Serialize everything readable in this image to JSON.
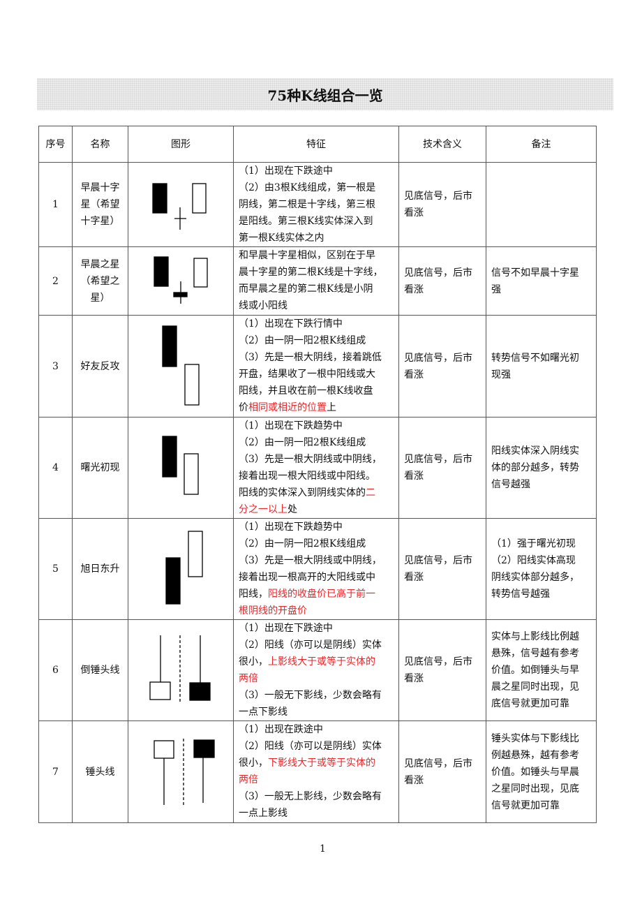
{
  "title": "75种K线组合一览",
  "headers": [
    "序号",
    "名称",
    "图形",
    "特征",
    "技术含义",
    "备注"
  ],
  "colors": {
    "highlight": "#e8262a"
  },
  "rows": [
    {
      "no": "1",
      "name": [
        "早晨十字",
        "星（希望",
        "十字星）"
      ],
      "feature": [
        [
          [
            "（1）出现在下跌途中"
          ]
        ],
        [
          [
            "（2）由3根K线组成，第一根是"
          ]
        ],
        [
          [
            "阴线，第二根是十字线，第三根"
          ]
        ],
        [
          [
            "是阳线。第三根K线实体深入到"
          ]
        ],
        [
          [
            "第一根K线实体之内"
          ]
        ]
      ],
      "meaning": [
        "见底信号，后市",
        "看涨"
      ],
      "note": []
    },
    {
      "no": "2",
      "name": [
        "早晨之星",
        "（希望之",
        "星）"
      ],
      "feature": [
        [
          [
            "和早晨十字星相似，区别在于早"
          ]
        ],
        [
          [
            "晨十字星的第二根K线是十字线，"
          ]
        ],
        [
          [
            "而早晨之星的第二根K线是小阴"
          ]
        ],
        [
          [
            "线或小阳线"
          ]
        ]
      ],
      "meaning": [
        "见底信号，后市",
        "看涨"
      ],
      "note": [
        "信号不如早晨十字星",
        "强"
      ]
    },
    {
      "no": "3",
      "name": [
        "好友反攻"
      ],
      "feature": [
        [
          [
            "（1）出现在下跌行情中"
          ]
        ],
        [
          [
            "（2）由一阴一阳2根K线组成"
          ]
        ],
        [
          [
            "（3）先是一根大阴线，接着跳低"
          ]
        ],
        [
          [
            "开盘，结果收了一根中阳线或大"
          ]
        ],
        [
          [
            "阳线，并且收在前一根K线收盘"
          ]
        ],
        [
          [
            "价"
          ],
          [
            "相同或相近的位置",
            "red"
          ],
          [
            "上"
          ]
        ]
      ],
      "meaning": [
        "见底信号，后市",
        "看涨"
      ],
      "note": [
        "转势信号不如曙光初",
        "现强"
      ]
    },
    {
      "no": "4",
      "name": [
        "曙光初现"
      ],
      "feature": [
        [
          [
            "（1）出现在下跌趋势中"
          ]
        ],
        [
          [
            "（2）由一阴一阳2根K线组成"
          ]
        ],
        [
          [
            "（3）先是一根大阴线或中阴线，"
          ]
        ],
        [
          [
            "接着出现一根大阳线或中阳线。"
          ]
        ],
        [
          [
            "阳线的实体深入到阴线实体的"
          ],
          [
            "二",
            "red"
          ]
        ],
        [
          [
            "分之一以上",
            "red"
          ],
          [
            "处"
          ]
        ]
      ],
      "meaning": [
        "见底信号，后市",
        "看涨"
      ],
      "note": [
        "阳线实体深入阴线实",
        "体的部分越多，转势",
        "信号越强"
      ]
    },
    {
      "no": "5",
      "name": [
        "旭日东升"
      ],
      "feature": [
        [
          [
            "（1）出现在下跌趋势中"
          ]
        ],
        [
          [
            "（2）由一阴一阳2根K线组成"
          ]
        ],
        [
          [
            "（3）先是一根大阴线或中阴线，"
          ]
        ],
        [
          [
            "接着出现一根高开的大阳线或中"
          ]
        ],
        [
          [
            "阳线，"
          ],
          [
            "阳线的收盘价已高于前一",
            "red"
          ]
        ],
        [
          [
            "根阴线的开盘价",
            "red"
          ]
        ]
      ],
      "meaning": [
        "见底信号，后市",
        "看涨"
      ],
      "note": [
        "（1）强于曙光初现",
        "（2）阳线实体高现",
        "阴线实体部分越多，",
        "转势信号越强"
      ]
    },
    {
      "no": "6",
      "name": [
        "倒锤头线"
      ],
      "feature": [
        [
          [
            "（1）出现在下跌途中"
          ]
        ],
        [
          [
            "（2）阳线（亦可以是阴线）实体"
          ]
        ],
        [
          [
            "很小，"
          ],
          [
            "上影线大于或等于实体的",
            "red"
          ]
        ],
        [
          [
            "两倍",
            "red"
          ]
        ],
        [
          [
            "（3）一般无下影线，少数会略有"
          ]
        ],
        [
          [
            "一点下影线"
          ]
        ]
      ],
      "meaning": [
        "见底信号，后市",
        "看涨"
      ],
      "note": [
        "实体与上影线比例越",
        "悬殊，信号越有参考",
        "价值。如倒锤头与早",
        "晨之星同时出现，见",
        "底信号就更加可靠"
      ]
    },
    {
      "no": "7",
      "name": [
        "锤头线"
      ],
      "feature": [
        [
          [
            "（1）出现在跌途中"
          ]
        ],
        [
          [
            "（2）阳线（亦可以是阴线）实体"
          ]
        ],
        [
          [
            "很小，"
          ],
          [
            "下影线大于或等于实体的",
            "red"
          ]
        ],
        [
          [
            "两倍",
            "red"
          ]
        ],
        [
          [
            "（3）一般无上影线，少数会略有"
          ]
        ],
        [
          [
            "一点上影线"
          ]
        ]
      ],
      "meaning": [
        "见底信号，后市",
        "看涨"
      ],
      "note": [
        "锤头实体与下影线比",
        "例越悬殊，越有参考",
        "价值。如锤头与早晨",
        "之星同时出现，见底",
        "信号就更加可靠"
      ]
    }
  ],
  "page_number": "1"
}
